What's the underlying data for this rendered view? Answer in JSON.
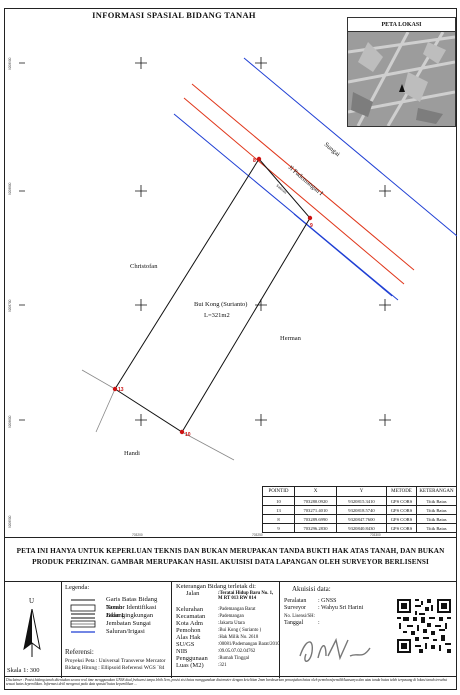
{
  "map": {
    "title": "INFORMASI SPASIAL BIDANG TANAH",
    "labels": {
      "sungai": "Sungai",
      "jalan": "Jl Pademangan I",
      "saluran": "Saluran",
      "north_parcel": "Christofan",
      "parcel": "Bui Kong (Surianto)",
      "luas": "L=321m2",
      "east_parcel": "Herman",
      "south_parcel": "Handi"
    },
    "points": [
      {
        "id": "8",
        "color": "#cc1111"
      },
      {
        "id": "9",
        "color": "#cc1111"
      },
      {
        "id": "10",
        "color": "#cc1111"
      },
      {
        "id": "13",
        "color": "#cc1111"
      }
    ],
    "grid_labels": {
      "left": [
        "9208900",
        "9208800",
        "9208700",
        "9208600",
        "9208500",
        "9208400"
      ],
      "bottom": [
        "703200",
        "703250",
        "703300"
      ]
    },
    "colors": {
      "river": "#1f3fd4",
      "road": "#e0361a",
      "parcel": "#111111",
      "points": "#cc1111"
    }
  },
  "location_map": {
    "title": "PETA LOKASI"
  },
  "coord_table": {
    "headers": [
      "POINTID",
      "X",
      "Y",
      "METODE",
      "KETERANGAN"
    ],
    "rows": [
      [
        "10",
        "703280.0920",
        "9320815.3410",
        "GPS CORS",
        "Titik Batas"
      ],
      [
        "13",
        "703271.4010",
        "9320818.5740",
        "GPS CORS",
        "Titik Batas"
      ],
      [
        "8",
        "703289.6990",
        "9320847.7600",
        "GPS CORS",
        "Titik Batas"
      ],
      [
        "9",
        "703296.2830",
        "9320840.8430",
        "GPS CORS",
        "Titik Batas"
      ]
    ]
  },
  "disclaimer_main": "PETA INI HANYA UNTUK KEPERLUAN TEKNIS DAN BUKAN MERUPAKAN TANDA BUKTI HAK ATAS TANAH, DAN BUKAN PRODUK PERIZINAN. GAMBAR MERUPAKAN HASIL AKUISISI DATA LAPANGAN OLEH SURVEYOR BERLISENSI",
  "north": {
    "label": "U",
    "scale": "Skala 1: 300"
  },
  "legend": {
    "title": "Legenda:",
    "items": [
      "Garis Batas Bidang Tanah",
      "Nomor Identifikasi Bidang",
      "Jalan Lingkungan",
      "Jembatan Sungai",
      "Saluran/Irigasi"
    ],
    "ref_title": "Referensi:",
    "ref_rows": [
      {
        "k": "Proyeksi Peta",
        "v": ": Universal Transverse Mercator"
      },
      {
        "k": "Bidang Hitung",
        "v": ": Ellipsoid Referensi WGS `84"
      }
    ]
  },
  "parcel_info": {
    "title": "Keterangan Bidang terletak di:",
    "rows": [
      {
        "k": "Jalan",
        "v": ":Teratai Hidup Baru No. 1, M RT 013 RW 014",
        "bold": true
      },
      {
        "k": "Kelurahan",
        "v": ":Pademangan Barat"
      },
      {
        "k": "Kecamatan",
        "v": ":Pademangan"
      },
      {
        "k": "Kota Adm",
        "v": ":Jakarta Utara"
      },
      {
        "k": "Pemohon",
        "v": ":Bui Kong ( Surianto )"
      },
      {
        "k": "Alas Hak",
        "v": ":Hak Milik No. 2618"
      },
      {
        "k": "SU/GS",
        "v": ":00081/Pademangan Barat/2010"
      },
      {
        "k": "NIB",
        "v": ":09.05.07.02.04762"
      },
      {
        "k": "Penggunaan",
        "v": ":Rumah Tinggal"
      },
      {
        "k": "Luas (M2)",
        "v": ":321"
      }
    ]
  },
  "acquisition": {
    "title": "Akuisisi data:",
    "rows": [
      {
        "k": "Peralatan",
        "v": ": GNSS"
      },
      {
        "k": "Surveyor",
        "v": ": Wahyu Sri Harini"
      },
      {
        "k": "No. Lisensi/SH",
        "v": ":"
      },
      {
        "k": "Tanggal",
        "v": ":"
      }
    ]
  },
  "footer": "Disclaimer : Posisi bidang tanah ditentukan secara real time menggunakan GNSS dual frekuensi tanpa lebih 5cm, posisi sisi batas menggunakan distometer dengan ketelitian 2mm berdasarkan penunjukan batas oleh pemohon/pemilik/kuasanya dan atau tanda batas telah terpasang di lokasi tanah tersebut sesuai batas kepemilikan. Informasi detil mengenai pada data spasial batas kepemilikan ..."
}
